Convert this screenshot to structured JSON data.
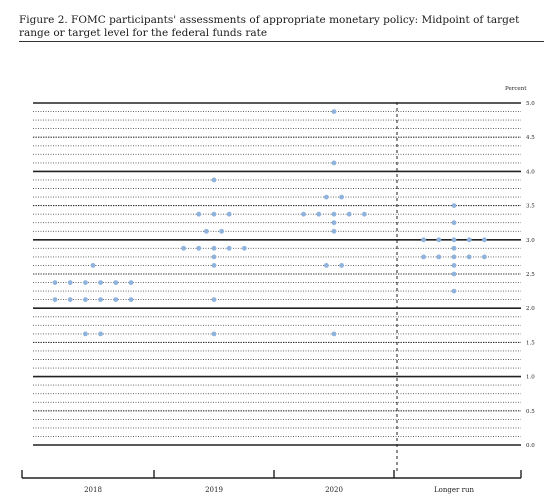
{
  "figure": {
    "title": "Figure 2. FOMC participants' assessments of appropriate monetary policy: Midpoint of target range or target level for the federal funds rate",
    "unit_label": "Percent"
  },
  "chart_data": {
    "type": "scatter",
    "title": "Figure 2. FOMC participants' assessments of appropriate monetary policy: Midpoint of target range or target level for the federal funds rate",
    "ylabel": "Percent",
    "xlabel": "",
    "ylim": [
      0,
      5.0
    ],
    "y_ticks": [
      "0.0",
      "0.5",
      "1.0",
      "1.5",
      "2.0",
      "2.5",
      "3.0",
      "3.5",
      "4.0",
      "4.5",
      "5.0"
    ],
    "categories": [
      "2018",
      "2019",
      "2020",
      "Longer run"
    ],
    "grid": true,
    "dot_color": "#8fb3dd",
    "series": [
      {
        "category": "2018",
        "rows": [
          {
            "y": 2.625,
            "count": 1
          },
          {
            "y": 2.375,
            "count": 6
          },
          {
            "y": 2.125,
            "count": 6
          },
          {
            "y": 1.625,
            "count": 2
          }
        ]
      },
      {
        "category": "2019",
        "rows": [
          {
            "y": 3.875,
            "count": 1
          },
          {
            "y": 3.375,
            "count": 3
          },
          {
            "y": 3.125,
            "count": 2
          },
          {
            "y": 2.875,
            "count": 5
          },
          {
            "y": 2.75,
            "count": 1
          },
          {
            "y": 2.625,
            "count": 1
          },
          {
            "y": 2.125,
            "count": 1
          },
          {
            "y": 1.625,
            "count": 1
          }
        ]
      },
      {
        "category": "2020",
        "rows": [
          {
            "y": 4.875,
            "count": 1
          },
          {
            "y": 4.125,
            "count": 1
          },
          {
            "y": 3.625,
            "count": 2
          },
          {
            "y": 3.375,
            "count": 5
          },
          {
            "y": 3.25,
            "count": 1
          },
          {
            "y": 3.125,
            "count": 1
          },
          {
            "y": 2.625,
            "count": 2
          },
          {
            "y": 1.625,
            "count": 1
          }
        ]
      },
      {
        "category": "Longer run",
        "rows": [
          {
            "y": 3.5,
            "count": 1
          },
          {
            "y": 3.25,
            "count": 1
          },
          {
            "y": 3.0,
            "count": 5
          },
          {
            "y": 2.875,
            "count": 1
          },
          {
            "y": 2.75,
            "count": 5
          },
          {
            "y": 2.625,
            "count": 1
          },
          {
            "y": 2.5,
            "count": 1
          },
          {
            "y": 2.25,
            "count": 1
          }
        ]
      }
    ]
  }
}
